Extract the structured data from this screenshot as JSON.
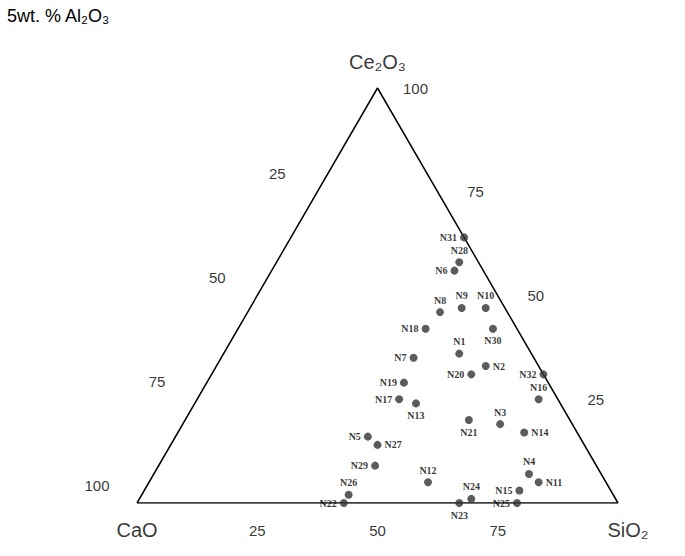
{
  "chart_data": {
    "type": "ternary",
    "title": "5wt. % Al₂O₃",
    "color": "#333333",
    "marker": "circle",
    "axes": [
      {
        "label": "CaO",
        "lim": [
          0,
          100
        ],
        "ticks": [
          25,
          50,
          75,
          100
        ]
      },
      {
        "label": "SiO₂",
        "lim": [
          0,
          100
        ],
        "ticks": [
          25,
          50,
          75
        ]
      },
      {
        "label": "Ce₂O₃",
        "lim": [
          0,
          100
        ],
        "ticks": [
          25,
          50,
          75,
          100
        ]
      }
    ],
    "points": [
      {
        "name": "N1",
        "values": [
          15,
          49,
          36
        ]
      },
      {
        "name": "N2",
        "values": [
          11,
          56,
          33
        ]
      },
      {
        "name": "N3",
        "values": [
          15,
          66,
          19
        ]
      },
      {
        "name": "N4",
        "values": [
          15,
          78,
          7
        ]
      },
      {
        "name": "N5",
        "values": [
          44,
          40,
          16
        ]
      },
      {
        "name": "N6",
        "values": [
          6,
          38,
          56
        ]
      },
      {
        "name": "N7",
        "values": [
          25,
          40,
          35
        ]
      },
      {
        "name": "N8",
        "values": [
          14,
          40,
          46
        ]
      },
      {
        "name": "N9",
        "values": [
          9,
          44,
          47
        ]
      },
      {
        "name": "N10",
        "values": [
          4,
          49,
          47
        ]
      },
      {
        "name": "N11",
        "values": [
          14,
          81,
          5
        ]
      },
      {
        "name": "N12",
        "values": [
          37,
          58,
          5
        ]
      },
      {
        "name": "N13",
        "values": [
          30,
          46,
          24
        ]
      },
      {
        "name": "N14",
        "values": [
          11,
          72,
          17
        ]
      },
      {
        "name": "N15",
        "values": [
          19,
          78,
          3
        ]
      },
      {
        "name": "N16",
        "values": [
          4,
          71,
          25
        ]
      },
      {
        "name": "N17",
        "values": [
          33,
          42,
          25
        ]
      },
      {
        "name": "N18",
        "values": [
          19,
          39,
          42
        ]
      },
      {
        "name": "N19",
        "values": [
          30,
          41,
          29
        ]
      },
      {
        "name": "N20",
        "values": [
          15,
          54,
          31
        ]
      },
      {
        "name": "N21",
        "values": [
          21,
          59,
          20
        ]
      },
      {
        "name": "N22",
        "values": [
          57,
          43,
          0
        ]
      },
      {
        "name": "N23",
        "values": [
          33,
          67,
          0
        ]
      },
      {
        "name": "N24",
        "values": [
          30,
          69,
          1
        ]
      },
      {
        "name": "N25",
        "values": [
          21,
          79,
          0
        ]
      },
      {
        "name": "N26",
        "values": [
          55,
          43,
          2
        ]
      },
      {
        "name": "N27",
        "values": [
          43,
          43,
          14
        ]
      },
      {
        "name": "N28",
        "values": [
          4,
          38,
          58
        ]
      },
      {
        "name": "N29",
        "values": [
          46,
          45,
          9
        ]
      },
      {
        "name": "N30",
        "values": [
          5,
          53,
          42
        ]
      },
      {
        "name": "N31",
        "values": [
          0,
          36,
          64
        ]
      },
      {
        "name": "N32",
        "values": [
          0,
          69,
          31
        ]
      }
    ]
  }
}
